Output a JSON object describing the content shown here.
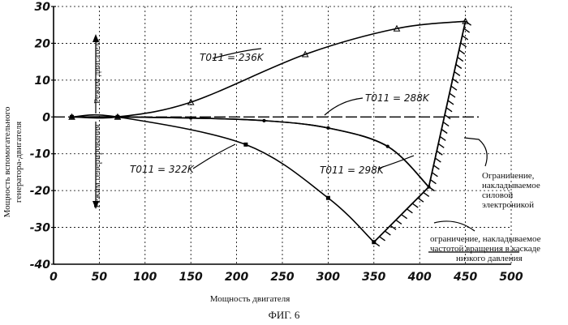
{
  "chart_data": {
    "type": "line",
    "xlabel": "Мощность двигателя",
    "ylabel": [
      "Мощность вспомогательного",
      "генератора-двигателя"
    ],
    "figure_caption": "ФИГ. 6",
    "xlim": [
      0,
      500
    ],
    "ylim": [
      -40,
      30
    ],
    "x_ticks": [
      0,
      50,
      100,
      150,
      200,
      250,
      300,
      350,
      400,
      450,
      500
    ],
    "y_ticks": [
      -40,
      -30,
      -20,
      -10,
      0,
      10,
      20,
      30
    ],
    "grid": true,
    "mode_labels": {
      "motor": "Режим двигателя",
      "generator": "Режим генерирования"
    },
    "series": [
      {
        "name": "T011 = 236K",
        "x": [
          20,
          70,
          150,
          275,
          375,
          450
        ],
        "y": [
          0,
          0,
          4,
          17,
          24,
          26
        ]
      },
      {
        "name": "T011 = 288K",
        "x": [
          20,
          70,
          150,
          230,
          300,
          365,
          410
        ],
        "y": [
          0,
          0,
          -0.3,
          -1,
          -3,
          -8,
          -19
        ]
      },
      {
        "name": "T011 = 298K",
        "x": [
          20,
          70,
          150,
          230,
          300,
          365,
          410
        ],
        "y": [
          0,
          0,
          -0.3,
          -1,
          -3,
          -8,
          -19
        ]
      },
      {
        "name": "T011 = 322K",
        "x": [
          20,
          70,
          210,
          300,
          350
        ],
        "y": [
          0,
          0,
          -7.5,
          -22,
          -34
        ]
      }
    ],
    "limits": [
      {
        "name": "Ограничение, накладываемое силовой электроникой",
        "x": [
          410,
          450
        ],
        "y": [
          -19,
          26
        ]
      },
      {
        "name": "ограничение, накладываемое частотой вращения в каскаде низкого давления",
        "x": [
          350,
          410
        ],
        "y": [
          -34,
          -19
        ]
      }
    ],
    "annotations": {
      "curve_labels": [
        "T011 = 236K",
        "T011 = 288K",
        "T011 = 298K",
        "T011 = 322K"
      ],
      "limit_power_electronics": [
        "Ограничение,",
        "накладываемое",
        "силовой",
        "электроникой"
      ],
      "limit_lp_speed": [
        "ограничение, накладываемое",
        "частотой вращения в каскаде",
        "низкого давления"
      ]
    }
  }
}
